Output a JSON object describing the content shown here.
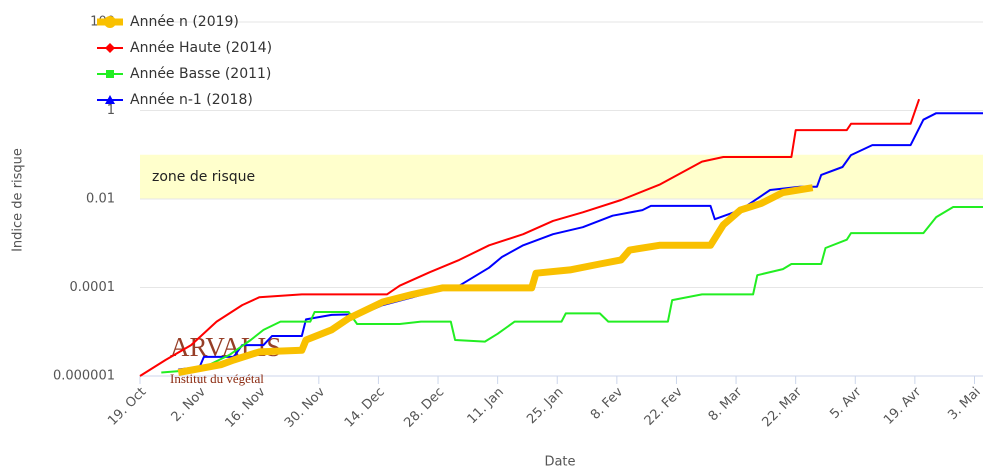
{
  "chart_data": {
    "type": "line",
    "y_axis_label": "Indice de risque",
    "x_axis_label": "Date",
    "log_scale_y": true,
    "grid": true,
    "legend": "top-left",
    "band": {
      "from": 0.01,
      "to": 0.1,
      "label": "zone de risque",
      "color": "#ffffcc"
    },
    "logo": {
      "name": "ARVALIS",
      "subtitle": "Institut du végétal"
    },
    "ylim": [
      1e-06,
      100
    ],
    "yticks": [
      1e-06,
      0.0001,
      0.01,
      1,
      100
    ],
    "xlim": [
      "10-19",
      "05-05"
    ],
    "xticks": [
      {
        "value": "10-19",
        "label": "19. Oct"
      },
      {
        "value": "11-02",
        "label": "2. Nov"
      },
      {
        "value": "11-16",
        "label": "16. Nov"
      },
      {
        "value": "11-30",
        "label": "30. Nov"
      },
      {
        "value": "12-14",
        "label": "14. Dec"
      },
      {
        "value": "12-28",
        "label": "28. Dec"
      },
      {
        "value": "01-11",
        "label": "11. Jan"
      },
      {
        "value": "01-25",
        "label": "25. Jan"
      },
      {
        "value": "02-08",
        "label": "8. Fev"
      },
      {
        "value": "02-22",
        "label": "22. Fev"
      },
      {
        "value": "03-08",
        "label": "8. Mar"
      },
      {
        "value": "03-22",
        "label": "22. Mar"
      },
      {
        "value": "04-05",
        "label": "5. Avr"
      },
      {
        "value": "04-19",
        "label": "19. Avr"
      },
      {
        "value": "05-03",
        "label": "3. Mai"
      }
    ],
    "series": [
      {
        "name": "Année n (2019)",
        "color": "#f9c000",
        "marker": "circle",
        "width": 7,
        "x": [
          "10-28",
          "11-07",
          "11-10",
          "11-16",
          "11-26",
          "11-27",
          "12-03",
          "12-07",
          "12-15",
          "12-22",
          "12-29",
          "01-05",
          "01-12",
          "01-19",
          "01-20",
          "01-28",
          "02-04",
          "02-09",
          "02-11",
          "02-18",
          "03-02",
          "03-05",
          "03-09",
          "03-14",
          "03-19",
          "03-26"
        ],
        "values": [
          1.2e-06,
          1.8e-06,
          2.3e-06,
          3.5e-06,
          3.8e-06,
          6.5e-06,
          1.1e-05,
          2e-05,
          4.7e-05,
          7e-05,
          9.8e-05,
          9.8e-05,
          9.8e-05,
          9.8e-05,
          0.00021,
          0.00025,
          0.00034,
          0.00042,
          0.0007,
          0.0009,
          0.0009,
          0.0026,
          0.0056,
          0.008,
          0.014,
          0.018
        ]
      },
      {
        "name": "Année Haute (2014)",
        "color": "#ff0000",
        "marker": "diamond",
        "width": 2,
        "x": [
          "10-19",
          "10-25",
          "10-31",
          "11-06",
          "11-12",
          "11-16",
          "11-26",
          "12-16",
          "12-19",
          "12-26",
          "01-02",
          "01-09",
          "01-17",
          "01-24",
          "01-31",
          "02-09",
          "02-18",
          "02-28",
          "03-05",
          "03-21",
          "03-22",
          "04-03",
          "04-04",
          "04-18",
          "04-20"
        ],
        "values": [
          1e-06,
          2.3e-06,
          5e-06,
          1.7e-05,
          4e-05,
          6e-05,
          7e-05,
          7e-05,
          0.00011,
          0.00022,
          0.00042,
          0.0009,
          0.0016,
          0.0032,
          0.005,
          0.0095,
          0.021,
          0.07,
          0.089,
          0.089,
          0.36,
          0.36,
          0.5,
          0.5,
          1.8
        ]
      },
      {
        "name": "Année Basse (2011)",
        "color": "#22ee22",
        "marker": "square",
        "width": 2,
        "x": [
          "10-24",
          "11-02",
          "11-09",
          "11-14",
          "11-17",
          "11-21",
          "11-28",
          "11-29",
          "12-07",
          "12-09",
          "12-19",
          "12-24",
          "12-31",
          "01-01",
          "01-08",
          "01-11",
          "01-15",
          "01-26",
          "01-27",
          "02-04",
          "02-06",
          "02-20",
          "02-21",
          "02-28",
          "03-12",
          "03-13",
          "03-19",
          "03-21",
          "03-28",
          "03-29",
          "04-03",
          "04-04",
          "04-21",
          "04-24",
          "04-28",
          "05-05"
        ],
        "values": [
          1.2e-06,
          1.4e-06,
          3e-06,
          6.5e-06,
          1.1e-05,
          1.7e-05,
          1.7e-05,
          2.8e-05,
          2.8e-05,
          1.5e-05,
          1.5e-05,
          1.7e-05,
          1.7e-05,
          6.5e-06,
          6e-06,
          9e-06,
          1.7e-05,
          1.7e-05,
          2.6e-05,
          2.6e-05,
          1.7e-05,
          1.7e-05,
          5.2e-05,
          7e-05,
          7e-05,
          0.00019,
          0.00026,
          0.00034,
          0.00034,
          0.00078,
          0.0012,
          0.0017,
          0.0017,
          0.0039,
          0.0066,
          0.0066
        ]
      },
      {
        "name": "Année n-1 (2018)",
        "color": "#0000ff",
        "marker": "triangle",
        "width": 2,
        "x": [
          "10-28",
          "11-02",
          "11-03",
          "11-10",
          "11-12",
          "11-17",
          "11-19",
          "11-26",
          "11-27",
          "12-03",
          "12-10",
          "12-15",
          "12-22",
          "12-29",
          "01-02",
          "01-09",
          "01-12",
          "01-17",
          "01-24",
          "01-31",
          "02-07",
          "02-14",
          "02-16",
          "02-23",
          "03-02",
          "03-03",
          "03-09",
          "03-16",
          "03-23",
          "03-27",
          "03-28",
          "04-02",
          "04-04",
          "04-09",
          "04-18",
          "04-21",
          "04-24",
          "05-05"
        ],
        "values": [
          1.4e-06,
          1.6e-06,
          2.7e-06,
          2.7e-06,
          5e-06,
          5e-06,
          8e-06,
          8e-06,
          1.9e-05,
          2.4e-05,
          2.5e-05,
          4e-05,
          6e-05,
          9.3e-05,
          0.00011,
          0.00028,
          0.00049,
          0.0009,
          0.0016,
          0.0023,
          0.0042,
          0.0056,
          0.007,
          0.007,
          0.007,
          0.0035,
          0.0056,
          0.016,
          0.019,
          0.019,
          0.035,
          0.053,
          0.098,
          0.165,
          0.165,
          0.62,
          0.87,
          0.87
        ]
      }
    ]
  }
}
